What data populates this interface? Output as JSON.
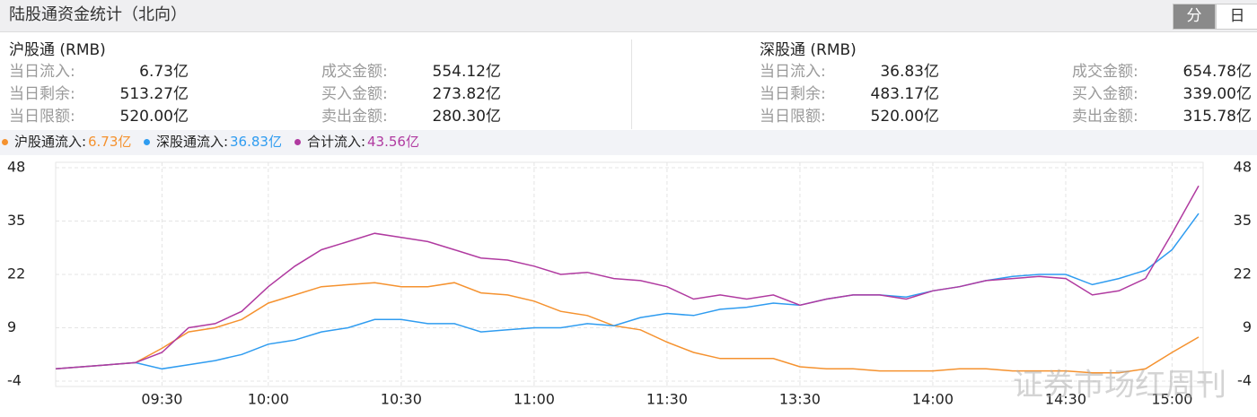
{
  "header": {
    "title": "陆股通资金统计（北向）",
    "tabs": [
      "分",
      "日"
    ]
  },
  "panels": [
    {
      "title": "沪股通 (RMB)",
      "rows": [
        [
          "当日流入:",
          "6.73亿",
          "成交金额:",
          "554.12亿"
        ],
        [
          "当日剩余:",
          "513.27亿",
          "买入金额:",
          "273.82亿"
        ],
        [
          "当日限额:",
          "520.00亿",
          "卖出金额:",
          "280.30亿"
        ]
      ]
    },
    {
      "title": "深股通 (RMB)",
      "rows": [
        [
          "当日流入:",
          "36.83亿",
          "成交金额:",
          "654.78亿"
        ],
        [
          "当日剩余:",
          "483.17亿",
          "买入金额:",
          "339.00亿"
        ],
        [
          "当日限额:",
          "520.00亿",
          "卖出金额:",
          "315.78亿"
        ]
      ]
    }
  ],
  "watermark": "证券市场红周刊",
  "chart_data": {
    "type": "line",
    "categories": [
      null,
      null,
      null,
      null,
      "09:30",
      null,
      null,
      null,
      "10:00",
      null,
      null,
      null,
      null,
      "10:30",
      null,
      null,
      null,
      null,
      "11:00",
      null,
      null,
      null,
      null,
      "11:30",
      null,
      null,
      null,
      null,
      "13:30",
      null,
      null,
      null,
      null,
      "14:00",
      null,
      null,
      null,
      null,
      "14:30",
      null,
      null,
      null,
      "15:00",
      null
    ],
    "series": [
      {
        "name": "沪股通流入:",
        "value_label": "6.73亿",
        "color": "#f5922f",
        "values": [
          -1,
          -0.5,
          0,
          0.5,
          4,
          8,
          9,
          11,
          15,
          17,
          19,
          19.5,
          20,
          19,
          19,
          20,
          17.5,
          17,
          15.5,
          13,
          12,
          9.5,
          8.5,
          5.5,
          3,
          1.5,
          1.5,
          1.5,
          -0.5,
          -1,
          -1,
          -1.5,
          -1.5,
          -1.5,
          -1,
          -1,
          -1.5,
          -1.5,
          -1.5,
          -2,
          -2,
          -1,
          3,
          6.73
        ]
      },
      {
        "name": "深股通流入:",
        "value_label": "36.83亿",
        "color": "#2f9cf0",
        "values": [
          -1,
          -0.5,
          0,
          0.5,
          -1,
          0,
          1,
          2.5,
          5,
          6,
          8,
          9,
          11,
          11,
          10,
          10,
          8,
          8.5,
          9,
          9,
          10,
          9.5,
          11.5,
          12.5,
          12,
          13.5,
          14,
          15,
          14.5,
          16,
          17,
          17,
          16.5,
          18,
          19,
          20.5,
          21.5,
          22,
          22,
          19.5,
          21,
          23,
          28,
          36.83
        ]
      },
      {
        "name": "合计流入:",
        "value_label": "43.56亿",
        "color": "#b03aa0",
        "values": [
          -1,
          -0.5,
          0,
          0.5,
          3,
          9,
          10,
          13,
          19,
          24,
          28,
          30,
          32,
          31,
          30,
          28,
          26,
          25.5,
          24,
          22,
          22.5,
          21,
          20.5,
          19,
          16,
          17,
          16,
          17,
          14.5,
          16,
          17,
          17,
          16,
          18,
          19,
          20.5,
          21,
          21.5,
          21,
          17,
          18,
          21,
          32,
          43.56
        ]
      }
    ],
    "ylim": [
      -4,
      48
    ],
    "yticks": [
      -4,
      9,
      22,
      35,
      48
    ],
    "grid": true
  }
}
